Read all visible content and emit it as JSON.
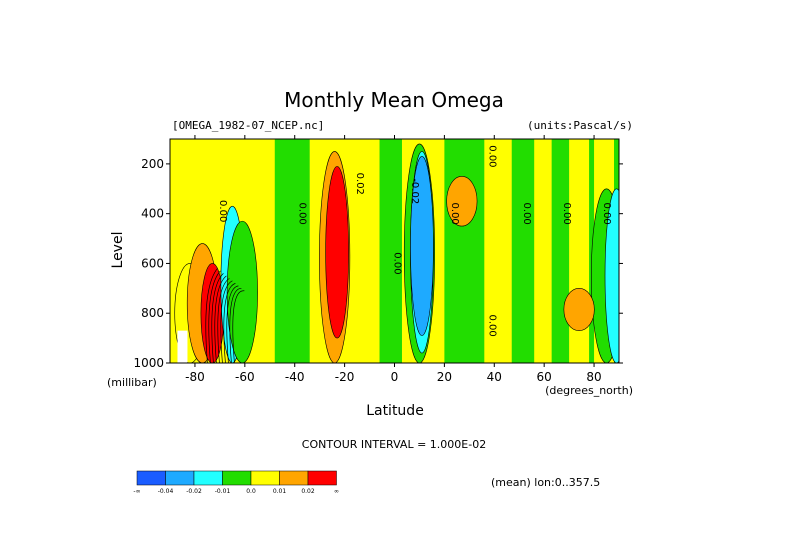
{
  "chart_data": {
    "type": "heatmap",
    "title": "Monthly Mean Omega",
    "subtitle_left": "[OMEGA_1982-07_NCEP.nc]",
    "subtitle_right": "(units:Pascal/s)",
    "xlabel": "Latitude",
    "x_units": "(degrees_north)",
    "ylabel": "Level",
    "y_units": "(millibar)",
    "xlim": [
      -90,
      90
    ],
    "ylim": [
      1000,
      100
    ],
    "x_ticks": [
      -80,
      -60,
      -40,
      -20,
      0,
      20,
      40,
      60,
      80
    ],
    "x_tick_labels": [
      "-80",
      "-60",
      "-40",
      "-20",
      "0",
      "20",
      "40",
      "60",
      "80"
    ],
    "y_ticks": [
      200,
      400,
      600,
      800,
      1000
    ],
    "y_tick_labels": [
      "200",
      "400",
      "600",
      "800",
      "1000"
    ],
    "contour_interval_text": "CONTOUR INTERVAL = 1.000E-02",
    "contour_labels": [
      {
        "text": "0.00",
        "lat": -70,
        "level": 390
      },
      {
        "text": "0.00",
        "lat": -38,
        "level": 400
      },
      {
        "text": "0.02",
        "lat": -15,
        "level": 280
      },
      {
        "text": "0.00",
        "lat": 0,
        "level": 600
      },
      {
        "text": "-0.02",
        "lat": 7,
        "level": 310
      },
      {
        "text": "0.00",
        "lat": 23,
        "level": 400
      },
      {
        "text": "0.00",
        "lat": 38,
        "level": 170
      },
      {
        "text": "0.00",
        "lat": 38,
        "level": 850
      },
      {
        "text": "0.00",
        "lat": 52,
        "level": 400
      },
      {
        "text": "0.00",
        "lat": 68,
        "level": 400
      },
      {
        "text": "0.00",
        "lat": 84,
        "level": 400
      }
    ],
    "bands": [
      {
        "lat": -82,
        "top": 600,
        "bottom": 1000,
        "value": 0.005
      },
      {
        "lat": -77,
        "top": 520,
        "bottom": 1000,
        "value": 0.012
      },
      {
        "lat": -73,
        "top": 600,
        "bottom": 1000,
        "value": 0.03
      },
      {
        "lat": -65,
        "top": 370,
        "bottom": 1000,
        "value": -0.02
      },
      {
        "lat": -61,
        "top": 430,
        "bottom": 1000,
        "value": -0.006
      },
      {
        "lat": -24,
        "top": 150,
        "bottom": 1000,
        "value": 0.012
      },
      {
        "lat": -23,
        "top": 210,
        "bottom": 900,
        "value": 0.03
      },
      {
        "lat": 10,
        "top": 120,
        "bottom": 1000,
        "value": -0.006
      },
      {
        "lat": 11,
        "top": 150,
        "bottom": 960,
        "value": -0.02
      },
      {
        "lat": 11,
        "top": 170,
        "bottom": 890,
        "value": -0.03
      },
      {
        "lat": 27,
        "top": 250,
        "bottom": 450,
        "value": 0.012
      },
      {
        "lat": 85,
        "top": 300,
        "bottom": 1000,
        "value": -0.006
      },
      {
        "lat": 89,
        "top": 300,
        "bottom": 1000,
        "value": -0.02
      },
      {
        "lat": 74,
        "top": 700,
        "bottom": 870,
        "value": 0.012
      }
    ],
    "colorbar": {
      "colors": [
        "#1a5cff",
        "#1eaaff",
        "#22ffff",
        "#22dd00",
        "#ffff00",
        "#ffa500",
        "#ff0000"
      ],
      "labels": [
        "-∞",
        "-0.04",
        "-0.02",
        "-0.01",
        "0.0",
        "0.01",
        "0.02",
        "∞"
      ]
    },
    "footer_right": "(mean) lon:0..357.5"
  }
}
